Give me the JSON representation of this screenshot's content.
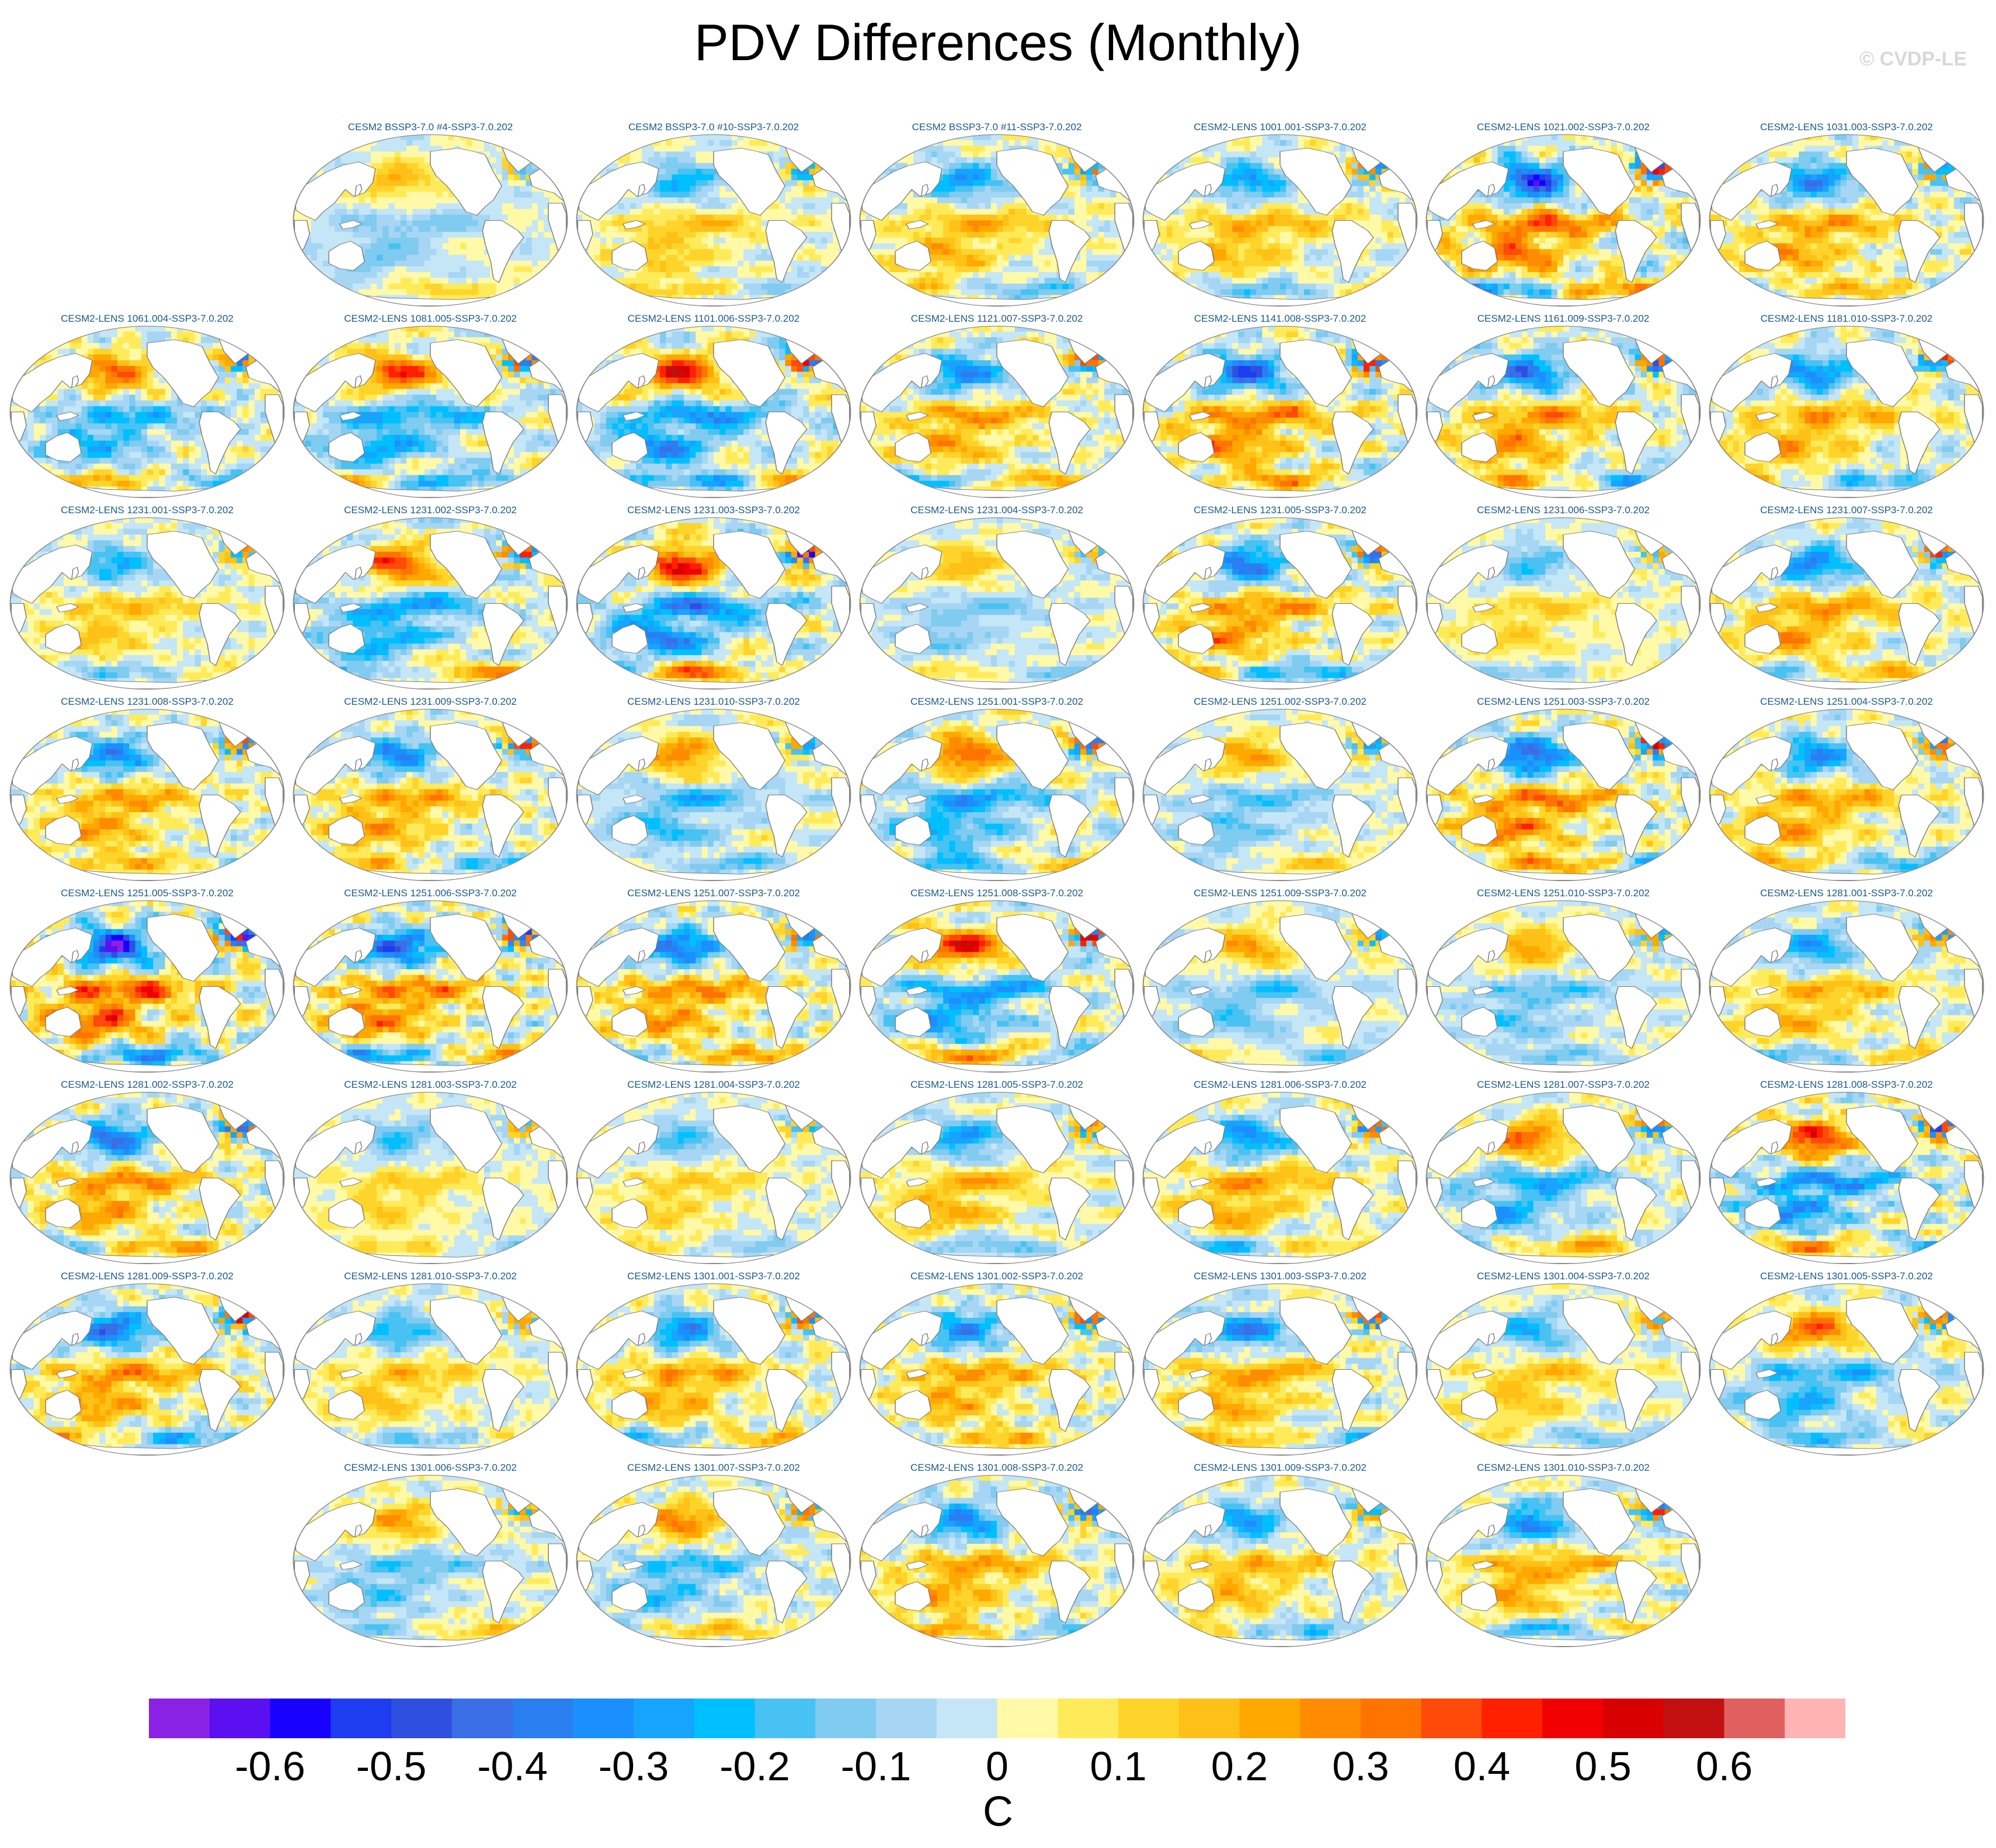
{
  "title": "PDV Differences (Monthly)",
  "credit": "© CVDP-LE",
  "chart_data": {
    "type": "heatmap",
    "title": "PDV Differences (Monthly)",
    "units": "C",
    "colorbar": {
      "levels": [
        -0.65,
        -0.6,
        -0.55,
        -0.5,
        -0.45,
        -0.4,
        -0.35,
        -0.3,
        -0.25,
        -0.2,
        -0.15,
        -0.1,
        -0.05,
        0,
        0.05,
        0.1,
        0.15,
        0.2,
        0.25,
        0.3,
        0.35,
        0.4,
        0.45,
        0.5,
        0.55,
        0.6,
        0.65
      ],
      "tick_labels": [
        "-0.6",
        "-0.5",
        "-0.4",
        "-0.3",
        "-0.2",
        "-0.1",
        "0",
        "0.1",
        "0.2",
        "0.3",
        "0.4",
        "0.5",
        "0.6"
      ],
      "tick_values": [
        -0.6,
        -0.5,
        -0.4,
        -0.3,
        -0.2,
        -0.1,
        0,
        0.1,
        0.2,
        0.3,
        0.4,
        0.5,
        0.6
      ],
      "colors": [
        "#8a22e6",
        "#5a10f0",
        "#1800ff",
        "#1e3cf0",
        "#2f4fe0",
        "#3a6ee6",
        "#2a7ef0",
        "#1a90ff",
        "#16a4ff",
        "#00bfff",
        "#48c2f2",
        "#80cbf0",
        "#a6d6f4",
        "#c4e6f6",
        "#fff9a8",
        "#ffeb5a",
        "#ffd42a",
        "#ffc018",
        "#ffa800",
        "#ff8c00",
        "#ff7400",
        "#ff4a0a",
        "#ff2000",
        "#f00000",
        "#d80000",
        "#c21010",
        "#e06060",
        "#ffb4b4"
      ]
    },
    "panels": [
      {
        "label": "CESM2 BSSP3-7.0 #4-SSP3-7.0.202",
        "amp": 0.2
      },
      {
        "label": "CESM2 BSSP3-7.0 #10-SSP3-7.0.202",
        "amp": 0.25
      },
      {
        "label": "CESM2 BSSP3-7.0 #11-SSP3-7.0.202",
        "amp": 0.3
      },
      {
        "label": "CESM2-LENS 1001.001-SSP3-7.0.202",
        "amp": 0.3
      },
      {
        "label": "CESM2-LENS 1021.002-SSP3-7.0.202",
        "amp": 0.5
      },
      {
        "label": "CESM2-LENS 1031.003-SSP3-7.0.202",
        "amp": 0.35
      },
      {
        "label": "CESM2-LENS 1061.004-SSP3-7.0.202",
        "amp": 0.35
      },
      {
        "label": "CESM2-LENS 1081.005-SSP3-7.0.202",
        "amp": 0.4
      },
      {
        "label": "CESM2-LENS 1101.006-SSP3-7.0.202",
        "amp": 0.45
      },
      {
        "label": "CESM2-LENS 1121.007-SSP3-7.0.202",
        "amp": 0.35
      },
      {
        "label": "CESM2-LENS 1141.008-SSP3-7.0.202",
        "amp": 0.45
      },
      {
        "label": "CESM2-LENS 1161.009-SSP3-7.0.202",
        "amp": 0.4
      },
      {
        "label": "CESM2-LENS 1181.010-SSP3-7.0.202",
        "amp": 0.35
      },
      {
        "label": "CESM2-LENS 1231.001-SSP3-7.0.202",
        "amp": 0.25
      },
      {
        "label": "CESM2-LENS 1231.002-SSP3-7.0.202",
        "amp": 0.4
      },
      {
        "label": "CESM2-LENS 1231.003-SSP3-7.0.202",
        "amp": 0.5
      },
      {
        "label": "CESM2-LENS 1231.004-SSP3-7.0.202",
        "amp": 0.2
      },
      {
        "label": "CESM2-LENS 1231.005-SSP3-7.0.202",
        "amp": 0.4
      },
      {
        "label": "CESM2-LENS 1231.006-SSP3-7.0.202",
        "amp": 0.2
      },
      {
        "label": "CESM2-LENS 1231.007-SSP3-7.0.202",
        "amp": 0.35
      },
      {
        "label": "CESM2-LENS 1231.008-SSP3-7.0.202",
        "amp": 0.35
      },
      {
        "label": "CESM2-LENS 1231.009-SSP3-7.0.202",
        "amp": 0.35
      },
      {
        "label": "CESM2-LENS 1231.010-SSP3-7.0.202",
        "amp": 0.3
      },
      {
        "label": "CESM2-LENS 1251.001-SSP3-7.0.202",
        "amp": 0.4
      },
      {
        "label": "CESM2-LENS 1251.002-SSP3-7.0.202",
        "amp": 0.25
      },
      {
        "label": "CESM2-LENS 1251.003-SSP3-7.0.202",
        "amp": 0.45
      },
      {
        "label": "CESM2-LENS 1251.004-SSP3-7.0.202",
        "amp": 0.35
      },
      {
        "label": "CESM2-LENS 1251.005-SSP3-7.0.202",
        "amp": 0.55
      },
      {
        "label": "CESM2-LENS 1251.006-SSP3-7.0.202",
        "amp": 0.45
      },
      {
        "label": "CESM2-LENS 1251.007-SSP3-7.0.202",
        "amp": 0.4
      },
      {
        "label": "CESM2-LENS 1251.008-SSP3-7.0.202",
        "amp": 0.45
      },
      {
        "label": "CESM2-LENS 1251.009-SSP3-7.0.202",
        "amp": 0.25
      },
      {
        "label": "CESM2-LENS 1251.010-SSP3-7.0.202",
        "amp": 0.25
      },
      {
        "label": "CESM2-LENS 1281.001-SSP3-7.0.202",
        "amp": 0.3
      },
      {
        "label": "CESM2-LENS 1281.002-SSP3-7.0.202",
        "amp": 0.4
      },
      {
        "label": "CESM2-LENS 1281.003-SSP3-7.0.202",
        "amp": 0.2
      },
      {
        "label": "CESM2-LENS 1281.004-SSP3-7.0.202",
        "amp": 0.2
      },
      {
        "label": "CESM2-LENS 1281.005-SSP3-7.0.202",
        "amp": 0.3
      },
      {
        "label": "CESM2-LENS 1281.006-SSP3-7.0.202",
        "amp": 0.35
      },
      {
        "label": "CESM2-LENS 1281.007-SSP3-7.0.202",
        "amp": 0.35
      },
      {
        "label": "CESM2-LENS 1281.008-SSP3-7.0.202",
        "amp": 0.45
      },
      {
        "label": "CESM2-LENS 1281.009-SSP3-7.0.202",
        "amp": 0.4
      },
      {
        "label": "CESM2-LENS 1281.010-SSP3-7.0.202",
        "amp": 0.25
      },
      {
        "label": "CESM2-LENS 1301.001-SSP3-7.0.202",
        "amp": 0.35
      },
      {
        "label": "CESM2-LENS 1301.002-SSP3-7.0.202",
        "amp": 0.35
      },
      {
        "label": "CESM2-LENS 1301.003-SSP3-7.0.202",
        "amp": 0.35
      },
      {
        "label": "CESM2-LENS 1301.004-SSP3-7.0.202",
        "amp": 0.25
      },
      {
        "label": "CESM2-LENS 1301.005-SSP3-7.0.202",
        "amp": 0.35
      },
      {
        "label": "CESM2-LENS 1301.006-SSP3-7.0.202",
        "amp": 0.25
      },
      {
        "label": "CESM2-LENS 1301.007-SSP3-7.0.202",
        "amp": 0.3
      },
      {
        "label": "CESM2-LENS 1301.008-SSP3-7.0.202",
        "amp": 0.35
      },
      {
        "label": "CESM2-LENS 1301.009-SSP3-7.0.202",
        "amp": 0.3
      },
      {
        "label": "CESM2-LENS 1301.010-SSP3-7.0.202",
        "amp": 0.35
      }
    ]
  }
}
